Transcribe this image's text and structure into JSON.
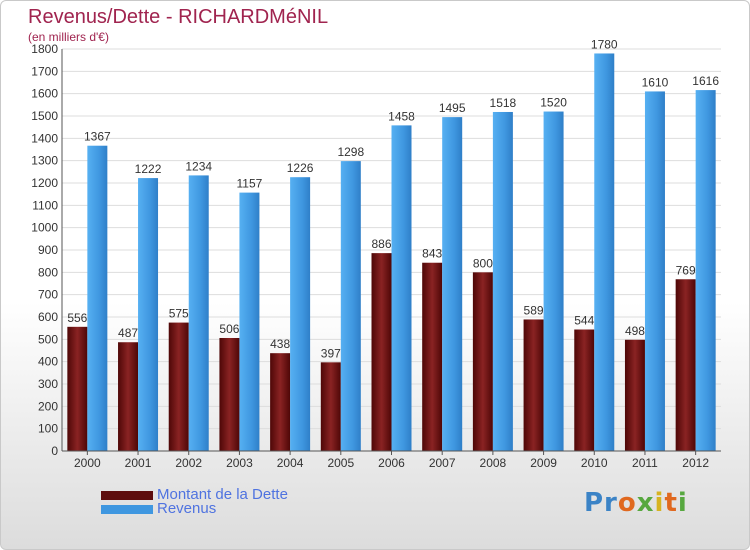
{
  "title": "Revenus/Dette - RICHARDMéNIL",
  "subtitle": "(en milliers d'€)",
  "logo_text": "Proxiti",
  "colors": {
    "dette": "#7a1515",
    "revenus": "#3f97e0",
    "title": "#a0244f",
    "legend_text": "#4f73e0"
  },
  "chart_data": {
    "type": "bar",
    "categories": [
      "2000",
      "2001",
      "2002",
      "2003",
      "2004",
      "2005",
      "2006",
      "2007",
      "2008",
      "2009",
      "2010",
      "2011",
      "2012"
    ],
    "series": [
      {
        "name": "Montant de la Dette",
        "values": [
          556,
          487,
          575,
          506,
          438,
          397,
          886,
          843,
          800,
          589,
          544,
          498,
          769
        ]
      },
      {
        "name": "Revenus",
        "values": [
          1367,
          1222,
          1234,
          1157,
          1226,
          1298,
          1458,
          1495,
          1518,
          1520,
          1780,
          1610,
          1616
        ]
      }
    ],
    "ylim": [
      0,
      1800
    ],
    "yticks": [
      0,
      100,
      200,
      300,
      400,
      500,
      600,
      700,
      800,
      900,
      1000,
      1100,
      1200,
      1300,
      1400,
      1500,
      1600,
      1700,
      1800
    ],
    "grid": true,
    "legend_position": "bottom-left"
  }
}
